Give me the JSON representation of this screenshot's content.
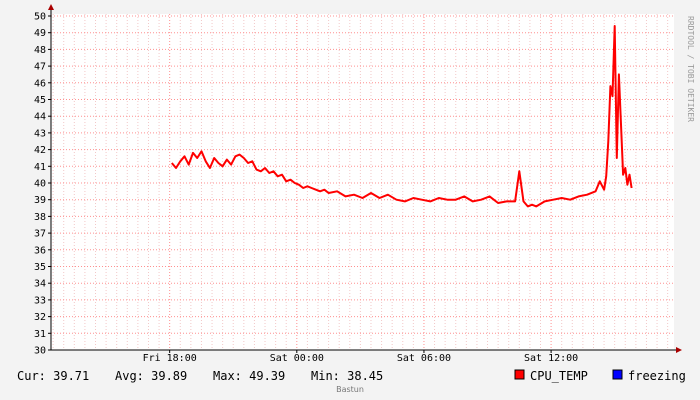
{
  "chart_data": {
    "type": "line",
    "title": "",
    "xlabel": "",
    "ylabel": "",
    "ylim": [
      30,
      50
    ],
    "yticks": [
      30,
      31,
      32,
      33,
      34,
      35,
      36,
      37,
      38,
      39,
      40,
      41,
      42,
      43,
      44,
      45,
      46,
      47,
      48,
      49,
      50
    ],
    "xlim": [
      -5.6,
      23.8
    ],
    "xticks": [
      {
        "value": 0,
        "label": "Fri 18:00"
      },
      {
        "value": 6,
        "label": "Sat 00:00"
      },
      {
        "value": 12,
        "label": "Sat 06:00"
      },
      {
        "value": 18,
        "label": "Sat 12:00"
      }
    ],
    "grid": true,
    "series": [
      {
        "name": "CPU_TEMP",
        "color": "#ff0000",
        "x": [
          0.1,
          0.3,
          0.5,
          0.7,
          0.9,
          1.1,
          1.3,
          1.5,
          1.7,
          1.9,
          2.1,
          2.3,
          2.5,
          2.7,
          2.9,
          3.1,
          3.3,
          3.5,
          3.7,
          3.9,
          4.1,
          4.3,
          4.5,
          4.7,
          4.9,
          5.1,
          5.3,
          5.5,
          5.7,
          5.9,
          6.1,
          6.3,
          6.5,
          6.7,
          6.9,
          7.1,
          7.3,
          7.5,
          7.9,
          8.3,
          8.7,
          9.1,
          9.5,
          9.9,
          10.3,
          10.7,
          11.1,
          11.5,
          11.9,
          12.3,
          12.7,
          13.1,
          13.5,
          13.9,
          14.3,
          14.7,
          15.1,
          15.5,
          15.9,
          16.3,
          16.5,
          16.7,
          16.9,
          17.1,
          17.3,
          17.7,
          18.1,
          18.5,
          18.9,
          19.3,
          19.7,
          20.1,
          20.3,
          20.5,
          20.6,
          20.7,
          20.8,
          20.9,
          21.0,
          21.1,
          21.2,
          21.3,
          21.4,
          21.5,
          21.6,
          21.7,
          21.8
        ],
        "values": [
          41.2,
          40.9,
          41.3,
          41.6,
          41.1,
          41.8,
          41.5,
          41.9,
          41.3,
          40.9,
          41.5,
          41.2,
          41.0,
          41.4,
          41.1,
          41.6,
          41.7,
          41.5,
          41.2,
          41.3,
          40.8,
          40.7,
          40.9,
          40.6,
          40.7,
          40.4,
          40.5,
          40.1,
          40.2,
          40.0,
          39.9,
          39.7,
          39.8,
          39.7,
          39.6,
          39.5,
          39.6,
          39.4,
          39.5,
          39.2,
          39.3,
          39.1,
          39.4,
          39.1,
          39.3,
          39.0,
          38.9,
          39.1,
          39.0,
          38.9,
          39.1,
          39.0,
          39.0,
          39.2,
          38.9,
          39.0,
          39.2,
          38.8,
          38.9,
          38.9,
          40.7,
          38.9,
          38.6,
          38.7,
          38.6,
          38.9,
          39.0,
          39.1,
          39.0,
          39.2,
          39.3,
          39.5,
          40.1,
          39.6,
          40.4,
          42.5,
          45.8,
          45.2,
          49.4,
          41.5,
          46.5,
          43.5,
          40.5,
          40.9,
          39.9,
          40.5,
          39.7
        ]
      },
      {
        "name": "freezing",
        "color": "#0000ff",
        "x": [],
        "values": []
      }
    ]
  },
  "stats": {
    "cur": "Cur: 39.71",
    "avg": "Avg: 39.89",
    "max": "Max: 49.39",
    "min": "Min: 38.45"
  },
  "watermark": "RRDTOOL / TOBI OETIKER",
  "footer": "Bastun"
}
